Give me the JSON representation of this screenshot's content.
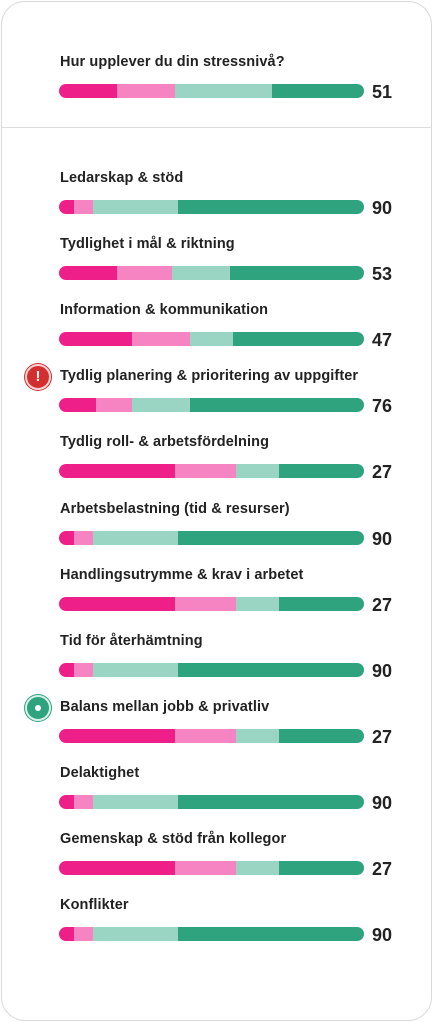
{
  "colors": {
    "very_low": "#ee1f88",
    "low": "#f784c2",
    "medium": "#9ad4c3",
    "high": "#2ea37e"
  },
  "stress": {
    "label": "Hur upplever du din stressnivå?",
    "score": "51",
    "segments": [
      19,
      19,
      32,
      30
    ]
  },
  "items": [
    {
      "label": "Ledarskap & stöd",
      "score": "90",
      "segments": [
        5,
        6,
        28,
        61
      ],
      "badge": ""
    },
    {
      "label": "Tydlighet i mål & riktning",
      "score": "53",
      "segments": [
        19,
        18,
        19,
        44
      ],
      "badge": ""
    },
    {
      "label": "Information & kommunikation",
      "score": "47",
      "segments": [
        24,
        19,
        14,
        43
      ],
      "badge": ""
    },
    {
      "label": "Tydlig planering & prioritering av uppgifter",
      "score": "76",
      "segments": [
        12,
        12,
        19,
        57
      ],
      "badge": "alert-icon"
    },
    {
      "label": "Tydlig roll- & arbetsfördelning",
      "score": "27",
      "segments": [
        38,
        20,
        14,
        28
      ],
      "badge": ""
    },
    {
      "label": "Arbetsbelastning (tid & resurser)",
      "score": "90",
      "segments": [
        5,
        6,
        28,
        61
      ],
      "badge": ""
    },
    {
      "label": "Handlingsutrymme & krav i arbetet",
      "score": "27",
      "segments": [
        38,
        20,
        14,
        28
      ],
      "badge": ""
    },
    {
      "label": "Tid för återhämtning",
      "score": "90",
      "segments": [
        5,
        6,
        28,
        61
      ],
      "badge": ""
    },
    {
      "label": "Balans mellan jobb & privatliv",
      "score": "27",
      "segments": [
        38,
        20,
        14,
        28
      ],
      "badge": "target-icon"
    },
    {
      "label": "Delaktighet",
      "score": "90",
      "segments": [
        5,
        6,
        28,
        61
      ],
      "badge": ""
    },
    {
      "label": "Gemenskap & stöd från kollegor",
      "score": "27",
      "segments": [
        38,
        20,
        14,
        28
      ],
      "badge": ""
    },
    {
      "label": "Konflikter",
      "score": "90",
      "segments": [
        5,
        6,
        28,
        61
      ],
      "badge": ""
    }
  ]
}
